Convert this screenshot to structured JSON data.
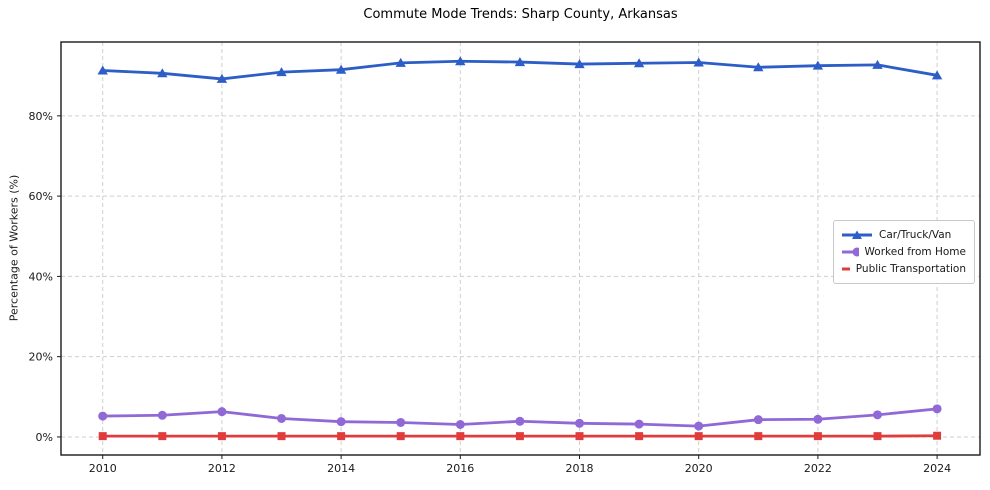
{
  "chart_data": {
    "type": "line",
    "title": "Commute Mode Trends: Sharp County, Arkansas",
    "xlabel": "",
    "ylabel": "Percentage of Workers (%)",
    "x": [
      2010,
      2011,
      2012,
      2013,
      2014,
      2015,
      2016,
      2017,
      2018,
      2019,
      2020,
      2021,
      2022,
      2023,
      2024
    ],
    "series": [
      {
        "name": "Car/Truck/Van",
        "color": "#2d5ec8",
        "marker": "triangle",
        "values": [
          91.3,
          90.6,
          89.2,
          90.9,
          91.5,
          93.2,
          93.6,
          93.4,
          92.9,
          93.1,
          93.3,
          92.1,
          92.5,
          92.7,
          90.1
        ]
      },
      {
        "name": "Worked from Home",
        "color": "#9169d7",
        "marker": "circle",
        "values": [
          5.2,
          5.4,
          6.3,
          4.6,
          3.8,
          3.6,
          3.1,
          3.9,
          3.4,
          3.2,
          2.7,
          4.3,
          4.4,
          5.5,
          7.0
        ]
      },
      {
        "name": "Public Transportation",
        "color": "#e13c3c",
        "marker": "square",
        "values": [
          0.2,
          0.2,
          0.2,
          0.2,
          0.2,
          0.2,
          0.2,
          0.2,
          0.2,
          0.2,
          0.2,
          0.2,
          0.2,
          0.2,
          0.3
        ]
      }
    ],
    "xlim": [
      2009.3,
      2024.72
    ],
    "ylim": [
      -4.5,
      98.4
    ],
    "xticks": {
      "values": [
        2010,
        2012,
        2014,
        2016,
        2018,
        2020,
        2022,
        2024
      ],
      "labels": [
        "2010",
        "2012",
        "2014",
        "2016",
        "2018",
        "2020",
        "2022",
        "2024"
      ]
    },
    "yticks": {
      "values": [
        0,
        20,
        40,
        60,
        80
      ],
      "labels": [
        "0%",
        "20%",
        "40%",
        "60%",
        "80%"
      ]
    },
    "grid": {
      "show": true,
      "style": "dashed",
      "color": "#cfcfcf"
    },
    "spine_color": "#1a1a1a",
    "background": "#ffffff",
    "legend": {
      "position": "center-right"
    }
  }
}
